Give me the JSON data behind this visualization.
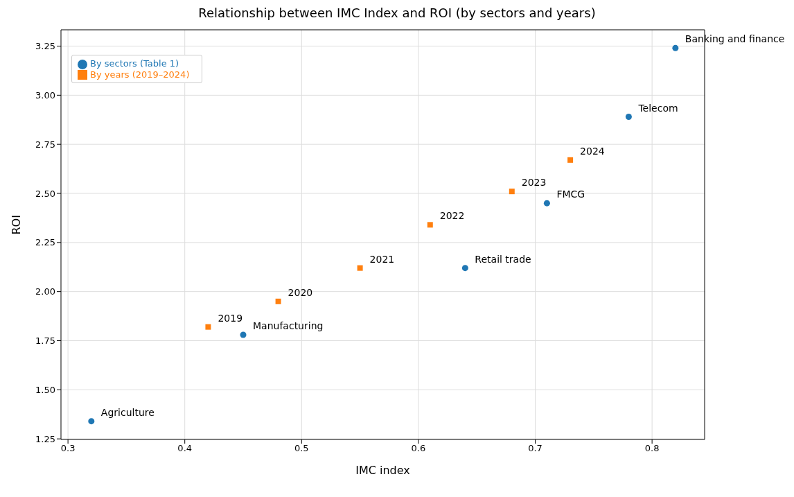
{
  "chart_data": {
    "type": "scatter",
    "title": "Relationship between IMC Index and ROI (by sectors and years)",
    "xlabel": "IMC index",
    "ylabel": "ROI",
    "series": [
      {
        "name": "By sectors (Table 1)",
        "color": "#1f77b4",
        "marker": "circle",
        "x": [
          0.32,
          0.45,
          0.64,
          0.71,
          0.78,
          0.82
        ],
        "values": [
          1.34,
          1.78,
          2.12,
          2.45,
          2.89,
          3.24
        ]
      },
      {
        "name": "By years (2019–2024)",
        "color": "#ff7f0e",
        "marker": "square",
        "x": [
          0.42,
          0.48,
          0.55,
          0.61,
          0.68,
          0.73
        ],
        "values": [
          1.82,
          1.95,
          2.12,
          2.34,
          2.51,
          2.67
        ]
      }
    ],
    "annotations": [
      {
        "text": "Agriculture",
        "x": 0.32,
        "y": 1.34
      },
      {
        "text": "Manufacturing",
        "x": 0.45,
        "y": 1.78
      },
      {
        "text": "Retail trade",
        "x": 0.64,
        "y": 2.12
      },
      {
        "text": "FMCG",
        "x": 0.71,
        "y": 2.45
      },
      {
        "text": "Telecom",
        "x": 0.78,
        "y": 2.89
      },
      {
        "text": "Banking and finance",
        "x": 0.82,
        "y": 3.24
      },
      {
        "text": "2019",
        "x": 0.42,
        "y": 1.82
      },
      {
        "text": "2020",
        "x": 0.48,
        "y": 1.95
      },
      {
        "text": "2021",
        "x": 0.55,
        "y": 2.12
      },
      {
        "text": "2022",
        "x": 0.61,
        "y": 2.34
      },
      {
        "text": "2023",
        "x": 0.68,
        "y": 2.51
      },
      {
        "text": "2024",
        "x": 0.73,
        "y": 2.67
      }
    ],
    "xlim": [
      0.294,
      0.845
    ],
    "xticks": [
      0.3,
      0.4,
      0.5,
      0.6,
      0.7,
      0.8
    ],
    "ylim": [
      1.247,
      3.333
    ],
    "yticks": [
      1.25,
      {
        "value": 1.5,
        "label": "1.50"
      },
      1.75,
      {
        "value": 2,
        "label": "2.00"
      },
      2.25,
      {
        "value": 2.5,
        "label": "2.50"
      },
      2.75,
      {
        "value": 3,
        "label": "3.00"
      },
      3.25
    ],
    "grid": true,
    "legend": "top left"
  }
}
